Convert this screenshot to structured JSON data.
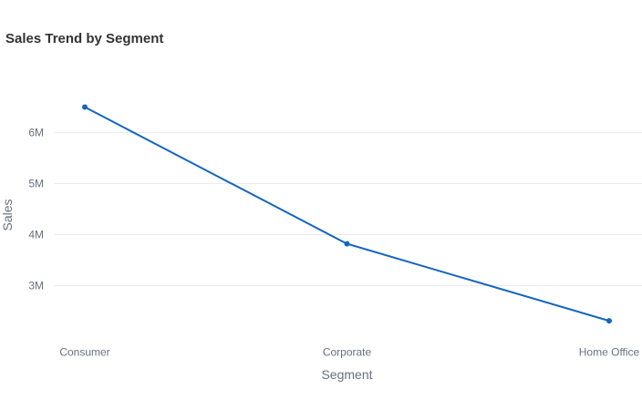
{
  "chart_data": {
    "type": "line",
    "title": "Sales Trend by Segment",
    "xlabel": "Segment",
    "ylabel": "Sales",
    "categories": [
      "Consumer",
      "Corporate",
      "Home Office"
    ],
    "series": [
      {
        "values": [
          6500000,
          3820000,
          2310000
        ]
      }
    ],
    "y_ticks": [
      3000000,
      4000000,
      5000000,
      6000000
    ],
    "y_tick_labels": [
      "3M",
      "4M",
      "5M",
      "6M"
    ],
    "ylim": [
      2000000,
      7000000
    ],
    "grid": true,
    "legend": "none",
    "colors": {
      "line": "#1565c0",
      "grid": "#ebebeb"
    }
  }
}
